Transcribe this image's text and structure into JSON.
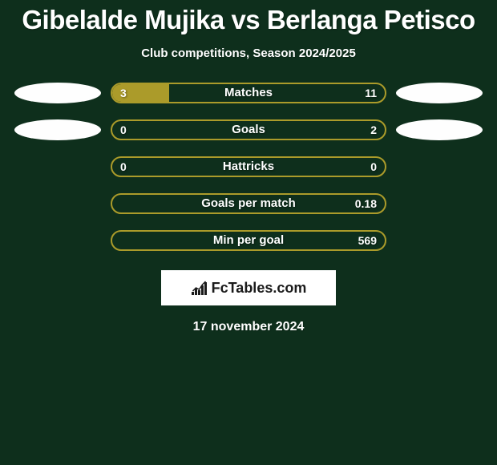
{
  "background_color": "#0e2f1c",
  "text_color": "#ffffff",
  "title": "Gibelalde Mujika vs Berlanga Petisco",
  "title_fontsize": 33,
  "subtitle": "Club competitions, Season 2024/2025",
  "subtitle_fontsize": 15,
  "player_left_color": "#ab9b2a",
  "player_right_color": "#6f6f6f",
  "bar_border_color": "#ab9b2a",
  "ellipse_color": "#fefefe",
  "rows": [
    {
      "label": "Matches",
      "left_val": "3",
      "right_val": "11",
      "left_pct": 21,
      "right_pct": 79,
      "show_left_ellipse": true,
      "show_right_ellipse": true,
      "fill_left": true,
      "fill_right": false
    },
    {
      "label": "Goals",
      "left_val": "0",
      "right_val": "2",
      "left_pct": 0,
      "right_pct": 100,
      "show_left_ellipse": true,
      "show_right_ellipse": true,
      "fill_left": false,
      "fill_right": false
    },
    {
      "label": "Hattricks",
      "left_val": "0",
      "right_val": "0",
      "left_pct": 0,
      "right_pct": 0,
      "show_left_ellipse": false,
      "show_right_ellipse": false,
      "fill_left": false,
      "fill_right": false
    },
    {
      "label": "Goals per match",
      "left_val": "",
      "right_val": "0.18",
      "left_pct": 0,
      "right_pct": 100,
      "show_left_ellipse": false,
      "show_right_ellipse": false,
      "fill_left": false,
      "fill_right": false
    },
    {
      "label": "Min per goal",
      "left_val": "",
      "right_val": "569",
      "left_pct": 0,
      "right_pct": 100,
      "show_left_ellipse": false,
      "show_right_ellipse": false,
      "fill_left": false,
      "fill_right": false
    }
  ],
  "logo_text": "FcTables.com",
  "date_text": "17 november 2024",
  "logo_icon_bars": [
    4,
    8,
    6,
    12,
    16
  ]
}
